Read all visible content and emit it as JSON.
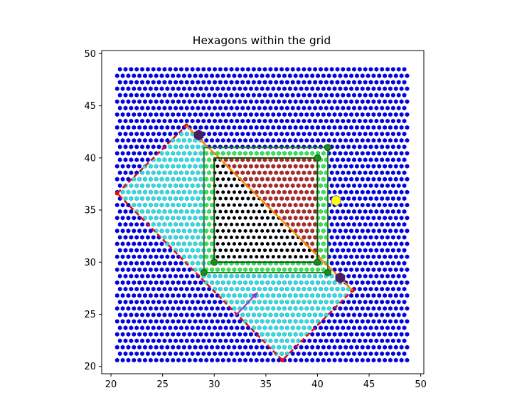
{
  "chart_data": {
    "type": "scatter",
    "title": "Hexagons within the grid",
    "xlabel": "",
    "ylabel": "",
    "xlim": [
      19.1,
      50.3
    ],
    "ylim": [
      19.3,
      50.3
    ],
    "xticks": [
      20,
      25,
      30,
      35,
      40,
      45,
      50
    ],
    "yticks": [
      20,
      25,
      30,
      35,
      40,
      45,
      50
    ],
    "grid": false,
    "legend": "none",
    "hex_grid": {
      "x_min": 20.6,
      "x_max": 48.8,
      "y_min": 20.6,
      "y_max": 48.9,
      "dx": 0.54,
      "dy": 0.62,
      "odd_row_offset": 0.27,
      "colors": {
        "outside": "#0000ee",
        "square": "#28e0e8",
        "frame": "#2ee855",
        "upper_triangle": "#a82a2a",
        "lower_triangle": "#000000"
      }
    },
    "rotated_square": {
      "vertices": [
        [
          20.6,
          36.6
        ],
        [
          27.3,
          43.1
        ],
        [
          43.4,
          27.3
        ],
        [
          36.6,
          20.6
        ]
      ],
      "edge_color": "#dd1111"
    },
    "diagonal": {
      "from": [
        27.3,
        43.1
      ],
      "to": [
        43.4,
        27.3
      ],
      "color": "#ff8c00"
    },
    "outer_rectangle": {
      "corners": [
        [
          29,
          29
        ],
        [
          29,
          41
        ],
        [
          41,
          41
        ],
        [
          41,
          29
        ]
      ],
      "color": "#2a7a2a",
      "markers": [
        [
          29,
          29
        ],
        [
          41,
          41
        ],
        [
          41,
          29
        ]
      ]
    },
    "inner_rectangle": {
      "corners": [
        [
          30,
          30
        ],
        [
          30,
          40
        ],
        [
          40,
          40
        ],
        [
          40,
          30
        ]
      ],
      "color": "#0b4d0b",
      "markers": [
        [
          30,
          30
        ],
        [
          40,
          30
        ],
        [
          40,
          40
        ]
      ]
    },
    "special_points": [
      {
        "x": 41.8,
        "y": 35.9,
        "color": "#ffff00"
      },
      {
        "x": 28.5,
        "y": 42.2,
        "color": "#4b1b6b"
      },
      {
        "x": 42.2,
        "y": 28.5,
        "color": "#4b1b6b"
      }
    ],
    "arrow": {
      "from": [
        32.0,
        24.8
      ],
      "to": [
        34.2,
        27.1
      ],
      "color": "#9933cc"
    }
  }
}
